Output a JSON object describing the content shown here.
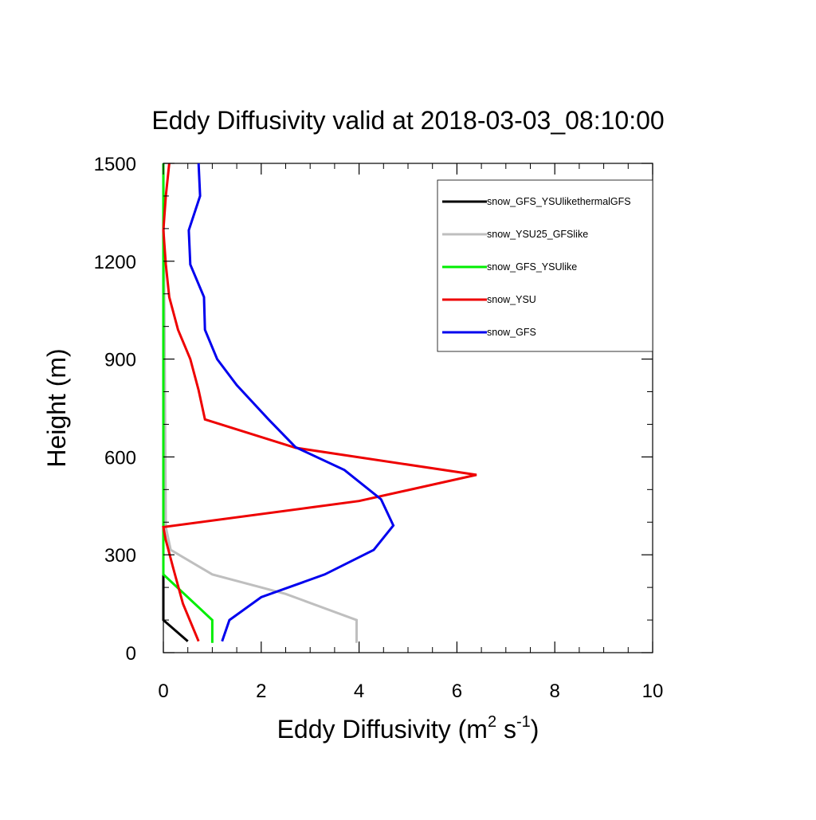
{
  "chart_data": {
    "type": "line",
    "title": "Eddy Diffusivity valid at 2018-03-03_08:10:00",
    "xlabel": {
      "base": "Eddy Diffusivity (m",
      "sup1": "2",
      "mid": " s",
      "sup2": "-1",
      "end": ")"
    },
    "ylabel": "Height (m)",
    "xlim": [
      0,
      10
    ],
    "ylim": [
      0,
      1500
    ],
    "x_ticks": [
      0,
      2,
      4,
      6,
      8,
      10
    ],
    "x_tick_labels": [
      "0",
      "2",
      "4",
      "6",
      "8",
      "10"
    ],
    "y_ticks": [
      0,
      300,
      600,
      900,
      1200,
      1500
    ],
    "y_tick_labels": [
      "0",
      "300",
      "600",
      "900",
      "1200",
      "1500"
    ],
    "legend_position": "top-right",
    "series": [
      {
        "name": "snow_GFS_YSUlikethermalGFS",
        "color": "#000000",
        "points": [
          [
            0.5,
            35
          ],
          [
            0.0,
            100
          ],
          [
            0.0,
            1500
          ]
        ]
      },
      {
        "name": "snow_YSU25_GFSlike",
        "color": "#bfbfbf",
        "points": [
          [
            3.95,
            30
          ],
          [
            3.95,
            100
          ],
          [
            2.5,
            180
          ],
          [
            1.0,
            240
          ],
          [
            0.15,
            315
          ],
          [
            0.05,
            385
          ],
          [
            0.0,
            1500
          ]
        ]
      },
      {
        "name": "snow_GFS_YSUlike",
        "color": "#00ee00",
        "points": [
          [
            1.0,
            30
          ],
          [
            1.0,
            100
          ],
          [
            0.0,
            240
          ],
          [
            0.0,
            1500
          ]
        ]
      },
      {
        "name": "snow_YSU",
        "color": "#ee0000",
        "points": [
          [
            0.72,
            35
          ],
          [
            0.4,
            150
          ],
          [
            0.2,
            260
          ],
          [
            0.05,
            345
          ],
          [
            0.0,
            385
          ],
          [
            4.0,
            465
          ],
          [
            6.4,
            545
          ],
          [
            2.7,
            628
          ],
          [
            0.85,
            715
          ],
          [
            0.72,
            805
          ],
          [
            0.55,
            900
          ],
          [
            0.3,
            990
          ],
          [
            0.12,
            1090
          ],
          [
            0.05,
            1190
          ],
          [
            0.0,
            1295
          ],
          [
            0.05,
            1400
          ],
          [
            0.12,
            1500
          ]
        ]
      },
      {
        "name": "snow_GFS",
        "color": "#0000ee",
        "points": [
          [
            1.2,
            35
          ],
          [
            1.35,
            100
          ],
          [
            2.0,
            170
          ],
          [
            3.3,
            240
          ],
          [
            4.3,
            315
          ],
          [
            4.7,
            390
          ],
          [
            4.45,
            470
          ],
          [
            3.7,
            560
          ],
          [
            2.7,
            630
          ],
          [
            2.15,
            715
          ],
          [
            1.5,
            820
          ],
          [
            1.1,
            900
          ],
          [
            0.85,
            990
          ],
          [
            0.83,
            1090
          ],
          [
            0.55,
            1190
          ],
          [
            0.52,
            1295
          ],
          [
            0.75,
            1400
          ],
          [
            0.72,
            1500
          ]
        ]
      }
    ]
  }
}
